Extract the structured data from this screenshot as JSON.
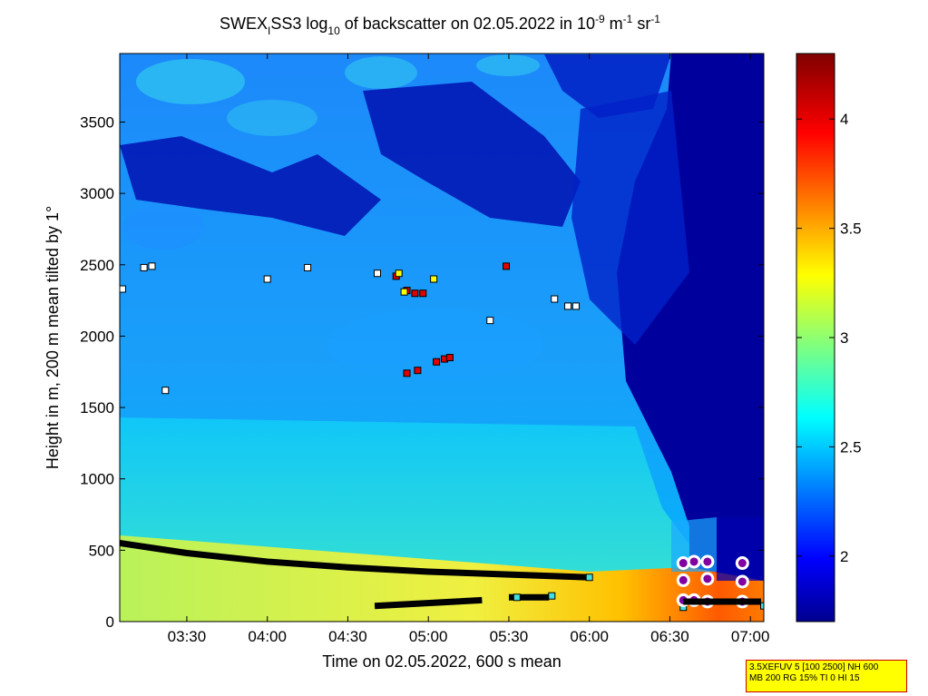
{
  "chart_data": {
    "type": "heatmap",
    "title_parts": {
      "a": "SWEX",
      "a_sub": "I",
      "b": "SS3 log",
      "b_sub": "10",
      "c": " of backscatter on 02.05.2022 in 10",
      "c_sup": "-9",
      "d": " m",
      "d_sup": "-1",
      "e": " sr",
      "e_sup": "-1"
    },
    "xlabel": "Time on 02.05.2022, 600 s mean",
    "ylabel": "Height in m, 200 m mean tilted by 1°",
    "x_ticks": [
      "03:30",
      "04:00",
      "04:30",
      "05:00",
      "05:30",
      "06:00",
      "06:30",
      "07:00"
    ],
    "x_range": [
      "03:05",
      "07:05"
    ],
    "y_ticks": [
      "0",
      "500",
      "1000",
      "1500",
      "2000",
      "2500",
      "3000",
      "3500"
    ],
    "y_range": [
      0,
      3980
    ],
    "colorbar": {
      "ticks": [
        "2",
        "2.5",
        "3",
        "3.5",
        "4"
      ],
      "range": [
        1.7,
        4.3
      ],
      "colormap": "jet"
    },
    "field_description_levels": {
      "boundary_layer_top_m": [
        [
          "03:05",
          550
        ],
        [
          "03:30",
          480
        ],
        [
          "04:00",
          420
        ],
        [
          "04:30",
          380
        ],
        [
          "05:00",
          350
        ],
        [
          "05:30",
          330
        ],
        [
          "06:00",
          310
        ]
      ]
    },
    "markers": {
      "white": [
        [
          "03:06",
          2330
        ],
        [
          "03:14",
          2480
        ],
        [
          "03:17",
          2490
        ],
        [
          "03:22",
          1620
        ],
        [
          "04:00",
          2400
        ],
        [
          "04:15",
          2480
        ],
        [
          "04:41",
          2440
        ],
        [
          "05:23",
          2110
        ],
        [
          "05:47",
          2260
        ],
        [
          "05:52",
          2210
        ],
        [
          "05:55",
          2210
        ]
      ],
      "red": [
        [
          "04:48",
          2420
        ],
        [
          "04:52",
          2320
        ],
        [
          "04:55",
          2300
        ],
        [
          "04:58",
          2300
        ],
        [
          "04:52",
          1740
        ],
        [
          "04:56",
          1760
        ],
        [
          "05:03",
          1820
        ],
        [
          "05:06",
          1840
        ],
        [
          "05:08",
          1850
        ],
        [
          "05:29",
          2490
        ]
      ],
      "yellow": [
        [
          "04:49",
          2440
        ],
        [
          "04:51",
          2310
        ],
        [
          "05:02",
          2400
        ]
      ],
      "cyan": [
        [
          "05:33",
          170
        ],
        [
          "05:46",
          180
        ],
        [
          "06:00",
          310
        ],
        [
          "06:35",
          100
        ],
        [
          "07:05",
          110
        ]
      ],
      "black_line_upper": "boundary_layer_top_m",
      "black_line_lower": [
        [
          "04:40",
          110
        ],
        [
          "05:10",
          140
        ],
        [
          "05:20",
          150
        ]
      ],
      "black_line_lower_2": [
        [
          "05:30",
          170
        ],
        [
          "05:45",
          170
        ]
      ],
      "ring_markers": [
        [
          "06:35",
          410
        ],
        [
          "06:39",
          420
        ],
        [
          "06:44",
          420
        ],
        [
          "06:57",
          410
        ],
        [
          "06:35",
          290
        ],
        [
          "06:44",
          300
        ],
        [
          "06:57",
          280
        ],
        [
          "06:35",
          150
        ],
        [
          "06:39",
          150
        ],
        [
          "06:44",
          140
        ],
        [
          "06:57",
          140
        ]
      ]
    }
  },
  "info_box": {
    "line1": "3.5XEFUV 5 [100 2500] NH 600",
    "line2": "MB 200 RG 15% TI 0 HI 15"
  }
}
